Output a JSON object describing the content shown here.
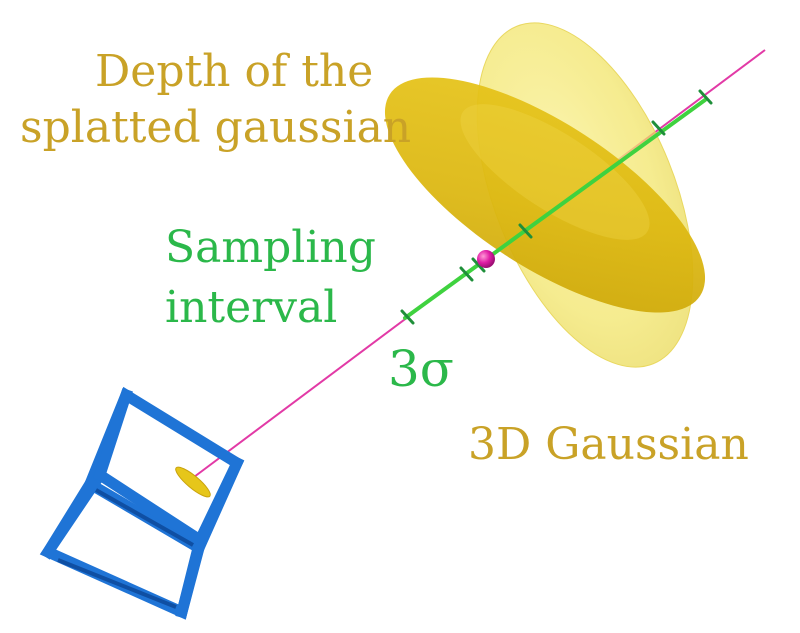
{
  "labels": {
    "depth_line1": "Depth of the",
    "depth_line2": "splatted gaussian",
    "sampling_line1": "Sampling",
    "sampling_line2": "interval",
    "sigma": "3σ",
    "gaussian": "3D Gaussian"
  },
  "colors": {
    "gold_text": "#c9a227",
    "green_text": "#2bb84a",
    "ray": "#e23aa6",
    "sample_segment": "#3fd23f",
    "sample_tick": "#1f8f3a",
    "ellipsoid_fill": "#f7ee7a",
    "splat_disc": "#e6c61a",
    "camera": "#1f74d6",
    "center_point": "#d4179a"
  },
  "icons": {
    "camera": "camera-frustum-icon",
    "center": "gaussian-center-icon"
  }
}
